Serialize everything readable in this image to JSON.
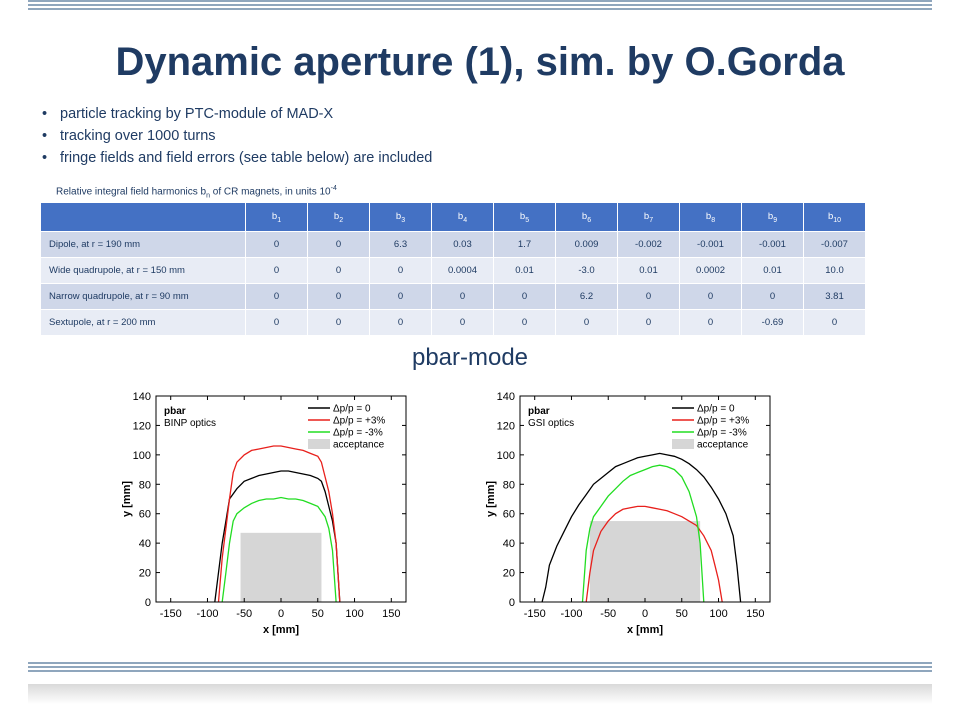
{
  "slide": {
    "title": "Dynamic aperture (1), sim. by O.Gorda",
    "bullets": [
      "particle tracking by PTC-module of MAD-X",
      "tracking over 1000 turns",
      "fringe fields and field errors (see table below) are included"
    ],
    "table_caption": {
      "prefix": "Relative integral field harmonics b",
      "sub": "n",
      "middle": " of CR magnets, in units 10",
      "sup": "-4"
    },
    "subtitle": "pbar-mode"
  },
  "table": {
    "headers": [
      "",
      "b1",
      "b2",
      "b3",
      "b4",
      "b5",
      "b6",
      "b7",
      "b8",
      "b9",
      "b10"
    ],
    "header_parts": [
      {
        "b": "",
        "n": ""
      },
      {
        "b": "b",
        "n": "1"
      },
      {
        "b": "b",
        "n": "2"
      },
      {
        "b": "b",
        "n": "3"
      },
      {
        "b": "b",
        "n": "4"
      },
      {
        "b": "b",
        "n": "5"
      },
      {
        "b": "b",
        "n": "6"
      },
      {
        "b": "b",
        "n": "7"
      },
      {
        "b": "b",
        "n": "8"
      },
      {
        "b": "b",
        "n": "9"
      },
      {
        "b": "b",
        "n": "10"
      }
    ],
    "rows": [
      {
        "label": "Dipole, at r = 190 mm",
        "values": [
          "0",
          "0",
          "6.3",
          "0.03",
          "1.7",
          "0.009",
          "-0.002",
          "-0.001",
          "-0.001",
          "-0.007"
        ]
      },
      {
        "label": "Wide quadrupole,  at r = 150 mm",
        "values": [
          "0",
          "0",
          "0",
          "0.0004",
          "0.01",
          "-3.0",
          "0.01",
          "0.0002",
          "0.01",
          "10.0"
        ]
      },
      {
        "label": "Narrow quadrupole,  at r = 90 mm",
        "values": [
          "0",
          "0",
          "0",
          "0",
          "0",
          "6.2",
          "0",
          "0",
          "0",
          "3.81"
        ]
      },
      {
        "label": "Sextupole, at r = 200 mm",
        "values": [
          "0",
          "0",
          "0",
          "0",
          "0",
          "0",
          "0",
          "0",
          "-0.69",
          "0"
        ]
      }
    ]
  },
  "chart_data": [
    {
      "type": "line",
      "title": "",
      "plot_label_1": "pbar",
      "plot_label_2": "BINP optics",
      "xlabel": "x [mm]",
      "ylabel": "y [mm]",
      "xlim": [
        -170,
        170
      ],
      "ylim": [
        0,
        140
      ],
      "xticks": [
        -150,
        -100,
        -50,
        0,
        50,
        100,
        150
      ],
      "yticks": [
        0,
        20,
        40,
        60,
        80,
        100,
        120,
        140
      ],
      "grid": false,
      "legend_placement": "top-right",
      "colors": {
        "dp0": "#000000",
        "dpp3": "#e8201c",
        "dpm3": "#22dd22",
        "acceptance": "#d6d6d6"
      },
      "series": [
        {
          "name": "Δp/p = 0",
          "x": [
            -90,
            -85,
            -80,
            -75,
            -70,
            -60,
            -50,
            -40,
            -30,
            -20,
            -10,
            0,
            10,
            20,
            30,
            40,
            50,
            55,
            60,
            65,
            70,
            75,
            80
          ],
          "y": [
            0,
            20,
            40,
            55,
            70,
            77,
            82,
            84,
            86,
            87,
            88,
            89,
            89,
            88,
            87,
            86,
            84,
            82,
            75,
            65,
            55,
            40,
            0
          ]
        },
        {
          "name": "Δp/p = +3%",
          "x": [
            -85,
            -80,
            -75,
            -70,
            -65,
            -60,
            -50,
            -40,
            -30,
            -20,
            -10,
            0,
            10,
            20,
            30,
            40,
            50,
            55,
            60,
            65,
            70,
            75,
            80
          ],
          "y": [
            0,
            30,
            50,
            70,
            88,
            95,
            100,
            103,
            104,
            105,
            106,
            106,
            105,
            104,
            103,
            101,
            99,
            95,
            85,
            75,
            60,
            40,
            0
          ]
        },
        {
          "name": "Δp/p = -3%",
          "x": [
            -80,
            -75,
            -70,
            -65,
            -60,
            -50,
            -40,
            -30,
            -20,
            -10,
            0,
            10,
            20,
            30,
            40,
            50,
            60,
            65,
            70,
            75
          ],
          "y": [
            0,
            20,
            40,
            55,
            60,
            64,
            67,
            69,
            70,
            70,
            71,
            70,
            70,
            69,
            67,
            65,
            58,
            50,
            35,
            0
          ]
        }
      ],
      "acceptance": {
        "name": "acceptance",
        "x": [
          -55,
          55
        ],
        "y": [
          0,
          47
        ]
      }
    },
    {
      "type": "line",
      "title": "",
      "plot_label_1": "pbar",
      "plot_label_2": "GSI optics",
      "xlabel": "x [mm]",
      "ylabel": "y [mm]",
      "xlim": [
        -170,
        170
      ],
      "ylim": [
        0,
        140
      ],
      "xticks": [
        -150,
        -100,
        -50,
        0,
        50,
        100,
        150
      ],
      "yticks": [
        0,
        20,
        40,
        60,
        80,
        100,
        120,
        140
      ],
      "grid": false,
      "legend_placement": "top-right",
      "colors": {
        "dp0": "#000000",
        "dpp3": "#e8201c",
        "dpm3": "#22dd22",
        "acceptance": "#d6d6d6"
      },
      "series": [
        {
          "name": "Δp/p = 0",
          "x": [
            -140,
            -135,
            -130,
            -120,
            -110,
            -100,
            -90,
            -80,
            -70,
            -60,
            -50,
            -40,
            -30,
            -20,
            -10,
            0,
            10,
            20,
            30,
            40,
            50,
            60,
            70,
            80,
            90,
            100,
            110,
            120,
            125,
            130
          ],
          "y": [
            0,
            10,
            25,
            38,
            48,
            58,
            66,
            73,
            80,
            84,
            88,
            92,
            94,
            96,
            98,
            99,
            100,
            101,
            100,
            99,
            97,
            94,
            90,
            85,
            78,
            70,
            60,
            45,
            25,
            0
          ]
        },
        {
          "name": "Δp/p = +3%",
          "x": [
            -80,
            -75,
            -70,
            -60,
            -50,
            -40,
            -30,
            -20,
            -10,
            0,
            10,
            20,
            30,
            40,
            50,
            60,
            70,
            80,
            90,
            95,
            100,
            105
          ],
          "y": [
            0,
            20,
            35,
            48,
            55,
            60,
            63,
            64,
            65,
            65,
            64,
            63,
            62,
            60,
            58,
            55,
            52,
            45,
            35,
            25,
            15,
            0
          ]
        },
        {
          "name": "Δp/p = -3%",
          "x": [
            -85,
            -80,
            -75,
            -70,
            -60,
            -50,
            -40,
            -30,
            -20,
            -10,
            0,
            10,
            20,
            30,
            40,
            50,
            60,
            70,
            75,
            80
          ],
          "y": [
            0,
            35,
            50,
            58,
            65,
            72,
            77,
            82,
            86,
            88,
            90,
            92,
            93,
            92,
            90,
            85,
            75,
            58,
            40,
            0
          ]
        }
      ],
      "acceptance": {
        "name": "acceptance",
        "x": [
          -75,
          75
        ],
        "y": [
          0,
          55
        ]
      }
    }
  ]
}
